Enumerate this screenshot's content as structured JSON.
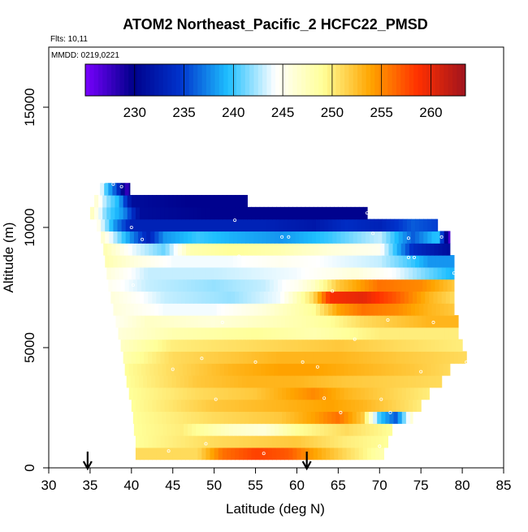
{
  "chart_data": {
    "type": "heatmap",
    "title": "ATOM2 Northeast_Pacific_2 HCFC22_PMSD",
    "flights_label": "Flts: 10,11",
    "dates_label": "MMDD: 0219,0221",
    "xlabel": "Latitude (deg N)",
    "ylabel": "Altitude (m)",
    "xlim": [
      30,
      85
    ],
    "ylim": [
      0,
      17500
    ],
    "x_ticks": [
      30,
      35,
      40,
      45,
      50,
      55,
      60,
      65,
      70,
      75,
      80,
      85
    ],
    "y_ticks": [
      0,
      5000,
      10000,
      15000
    ],
    "colorbar": {
      "min": 225,
      "max": 263.5,
      "ticks": [
        230,
        235,
        240,
        245,
        250,
        255,
        260
      ],
      "colors": [
        "#7a00ff",
        "#00008b",
        "#0033cc",
        "#1ebfff",
        "#ffffff",
        "#ffff99",
        "#ffa500",
        "#ff3000",
        "#a0141e"
      ]
    },
    "arrows_latitude": [
      34.7,
      61.2
    ],
    "altitude_bands": [
      {
        "alt": 600,
        "from": 40.5,
        "to": 70.5,
        "values": [
          [
            40.5,
            251
          ],
          [
            48,
            251
          ],
          [
            51,
            256
          ],
          [
            55,
            258
          ],
          [
            59,
            257
          ],
          [
            62,
            254
          ],
          [
            66,
            251
          ],
          [
            70.5,
            248
          ]
        ]
      },
      {
        "alt": 1100,
        "from": 40.5,
        "to": 71,
        "values": [
          [
            40.5,
            249
          ],
          [
            50,
            251
          ],
          [
            60,
            252
          ],
          [
            66,
            250
          ],
          [
            71,
            249
          ]
        ]
      },
      {
        "alt": 1600,
        "from": 40.3,
        "to": 71.5,
        "values": [
          [
            40.3,
            249
          ],
          [
            46,
            250
          ],
          [
            52,
            247
          ],
          [
            56,
            246
          ],
          [
            60,
            249
          ],
          [
            66,
            251
          ],
          [
            71.5,
            249
          ]
        ]
      },
      {
        "alt": 2100,
        "from": 40.2,
        "to": 74,
        "values": [
          [
            40.2,
            249
          ],
          [
            50,
            251
          ],
          [
            58,
            252
          ],
          [
            62,
            254
          ],
          [
            65,
            256
          ],
          [
            68,
            252
          ],
          [
            70,
            240
          ],
          [
            72,
            236
          ],
          [
            74,
            247
          ]
        ]
      },
      {
        "alt": 2600,
        "from": 40,
        "to": 75,
        "values": [
          [
            40,
            249
          ],
          [
            50,
            252
          ],
          [
            58,
            253
          ],
          [
            64,
            254
          ],
          [
            68,
            253
          ],
          [
            75,
            250
          ]
        ]
      },
      {
        "alt": 3100,
        "from": 39.7,
        "to": 76,
        "values": [
          [
            39.7,
            249
          ],
          [
            48,
            251
          ],
          [
            55,
            252
          ],
          [
            62,
            255
          ],
          [
            66,
            253
          ],
          [
            76,
            250
          ]
        ]
      },
      {
        "alt": 3600,
        "from": 39.4,
        "to": 77.5,
        "values": [
          [
            39.4,
            249
          ],
          [
            48,
            252
          ],
          [
            54,
            253
          ],
          [
            60,
            253
          ],
          [
            66,
            252
          ],
          [
            77.5,
            251
          ]
        ]
      },
      {
        "alt": 4100,
        "from": 39.2,
        "to": 78.5,
        "values": [
          [
            39.2,
            249
          ],
          [
            45,
            251
          ],
          [
            52,
            253
          ],
          [
            58,
            254
          ],
          [
            62,
            254
          ],
          [
            68,
            253
          ],
          [
            74,
            252
          ],
          [
            78.5,
            251
          ]
        ]
      },
      {
        "alt": 4600,
        "from": 39,
        "to": 80.5,
        "values": [
          [
            39,
            248
          ],
          [
            45,
            251
          ],
          [
            52,
            252
          ],
          [
            58,
            253
          ],
          [
            65,
            253
          ],
          [
            72,
            252
          ],
          [
            80.5,
            251
          ]
        ]
      },
      {
        "alt": 5100,
        "from": 38.7,
        "to": 80,
        "values": [
          [
            38.7,
            247
          ],
          [
            45,
            250
          ],
          [
            55,
            251
          ],
          [
            65,
            252
          ],
          [
            72,
            251
          ],
          [
            80,
            250
          ]
        ]
      },
      {
        "alt": 5600,
        "from": 38.4,
        "to": 79.5,
        "values": [
          [
            38.4,
            246
          ],
          [
            45,
            248
          ],
          [
            55,
            249
          ],
          [
            62,
            248
          ],
          [
            70,
            250
          ],
          [
            79.5,
            250
          ]
        ]
      },
      {
        "alt": 6100,
        "from": 38.1,
        "to": 79.5,
        "values": [
          [
            38.1,
            245
          ],
          [
            42,
            247
          ],
          [
            50,
            246
          ],
          [
            55,
            247
          ],
          [
            60,
            248
          ],
          [
            64,
            249
          ],
          [
            68,
            251
          ],
          [
            72,
            252
          ],
          [
            76,
            253
          ],
          [
            79.5,
            253
          ]
        ]
      },
      {
        "alt": 6600,
        "from": 37.8,
        "to": 79,
        "values": [
          [
            37.8,
            246
          ],
          [
            44,
            244
          ],
          [
            50,
            244
          ],
          [
            56,
            246
          ],
          [
            62,
            249
          ],
          [
            65,
            254
          ],
          [
            68,
            256
          ],
          [
            72,
            255
          ],
          [
            76,
            253
          ],
          [
            79,
            252
          ]
        ]
      },
      {
        "alt": 7100,
        "from": 37.5,
        "to": 79,
        "values": [
          [
            37.5,
            246
          ],
          [
            44,
            243
          ],
          [
            52,
            242
          ],
          [
            58,
            244
          ],
          [
            62,
            251
          ],
          [
            64,
            259
          ],
          [
            68,
            260
          ],
          [
            72,
            257
          ],
          [
            76,
            253
          ],
          [
            79,
            251
          ]
        ]
      },
      {
        "alt": 7600,
        "from": 37.2,
        "to": 79,
        "values": [
          [
            37.2,
            245
          ],
          [
            42,
            243
          ],
          [
            50,
            242
          ],
          [
            56,
            243
          ],
          [
            60,
            245
          ],
          [
            62,
            247
          ],
          [
            65,
            252
          ],
          [
            70,
            256
          ],
          [
            75,
            255
          ],
          [
            79,
            252
          ]
        ]
      },
      {
        "alt": 8100,
        "from": 37,
        "to": 79,
        "values": [
          [
            37,
            246
          ],
          [
            42,
            243
          ],
          [
            50,
            243
          ],
          [
            60,
            244
          ],
          [
            67,
            246
          ],
          [
            72,
            244
          ],
          [
            76,
            241
          ],
          [
            79,
            239
          ]
        ]
      },
      {
        "alt": 8600,
        "from": 36.8,
        "to": 79,
        "values": [
          [
            36.8,
            248
          ],
          [
            40,
            246
          ],
          [
            45,
            244
          ],
          [
            52,
            244
          ],
          [
            58,
            245
          ],
          [
            64,
            244
          ],
          [
            70,
            243
          ],
          [
            74,
            240
          ],
          [
            76,
            238
          ],
          [
            79,
            238
          ]
        ]
      },
      {
        "alt": 9100,
        "from": 36.6,
        "to": 78.5,
        "values": [
          [
            36.6,
            248
          ],
          [
            40,
            244
          ],
          [
            44,
            241
          ],
          [
            47,
            248
          ],
          [
            52,
            249
          ],
          [
            58,
            248
          ],
          [
            64,
            246
          ],
          [
            70,
            245
          ],
          [
            74,
            234
          ],
          [
            78.5,
            231
          ]
        ]
      },
      {
        "alt": 9600,
        "from": 36.3,
        "to": 78.5,
        "values": [
          [
            36.3,
            247
          ],
          [
            39,
            240
          ],
          [
            42,
            233
          ],
          [
            44,
            238
          ],
          [
            48,
            240
          ],
          [
            52,
            239
          ],
          [
            58,
            238
          ],
          [
            64,
            240
          ],
          [
            70,
            243
          ],
          [
            74,
            236
          ],
          [
            77,
            240
          ],
          [
            78.5,
            226
          ]
        ]
      },
      {
        "alt": 10100,
        "from": 35.8,
        "to": 77,
        "values": [
          [
            35.8,
            246
          ],
          [
            38,
            238
          ],
          [
            40,
            233
          ],
          [
            44,
            233
          ],
          [
            50,
            233
          ],
          [
            56,
            233
          ],
          [
            62,
            232
          ],
          [
            66,
            234
          ],
          [
            70,
            233
          ],
          [
            74,
            236
          ],
          [
            77,
            235
          ]
        ]
      },
      {
        "alt": 10600,
        "from": 35,
        "to": 68.5,
        "values": [
          [
            35,
            248
          ],
          [
            37,
            241
          ],
          [
            39,
            238
          ],
          [
            41,
            231
          ],
          [
            50,
            230
          ],
          [
            60,
            230
          ],
          [
            68.5,
            230
          ]
        ]
      },
      {
        "alt": 11100,
        "from": 35.5,
        "to": 54,
        "values": [
          [
            35.5,
            247
          ],
          [
            37,
            242
          ],
          [
            38.5,
            239
          ],
          [
            40,
            231
          ],
          [
            47,
            230
          ],
          [
            54,
            230
          ]
        ]
      },
      {
        "alt": 11600,
        "from": 36.2,
        "to": 39.8,
        "values": [
          [
            36.2,
            245
          ],
          [
            37,
            240
          ],
          [
            38,
            236
          ],
          [
            38.8,
            232
          ],
          [
            39.3,
            227
          ],
          [
            39.8,
            230
          ]
        ]
      }
    ],
    "sample_points": [
      [
        36.7,
        11900
      ],
      [
        37.8,
        11800
      ],
      [
        38.8,
        11700
      ],
      [
        52.5,
        10300
      ],
      [
        40,
        10000
      ],
      [
        68.5,
        10600
      ],
      [
        41.3,
        9500
      ],
      [
        58.2,
        9600
      ],
      [
        59,
        9600
      ],
      [
        69.2,
        9750
      ],
      [
        73.5,
        9550
      ],
      [
        77.5,
        9600
      ],
      [
        53,
        8800
      ],
      [
        73.5,
        8750
      ],
      [
        74.2,
        8750
      ],
      [
        79,
        8100
      ],
      [
        40.2,
        7600
      ],
      [
        64.3,
        7350
      ],
      [
        51,
        6050
      ],
      [
        71,
        6150
      ],
      [
        76.5,
        6050
      ],
      [
        67,
        5350
      ],
      [
        48.5,
        4550
      ],
      [
        55,
        4400
      ],
      [
        60.7,
        4400
      ],
      [
        62.5,
        4200
      ],
      [
        45,
        4100
      ],
      [
        75,
        4000
      ],
      [
        80.5,
        4400
      ],
      [
        50.2,
        2850
      ],
      [
        63.3,
        2900
      ],
      [
        70.2,
        2850
      ],
      [
        65.3,
        2300
      ],
      [
        71.3,
        2300
      ],
      [
        49,
        1000
      ],
      [
        44.5,
        700
      ],
      [
        56,
        600
      ],
      [
        70,
        900
      ]
    ]
  }
}
